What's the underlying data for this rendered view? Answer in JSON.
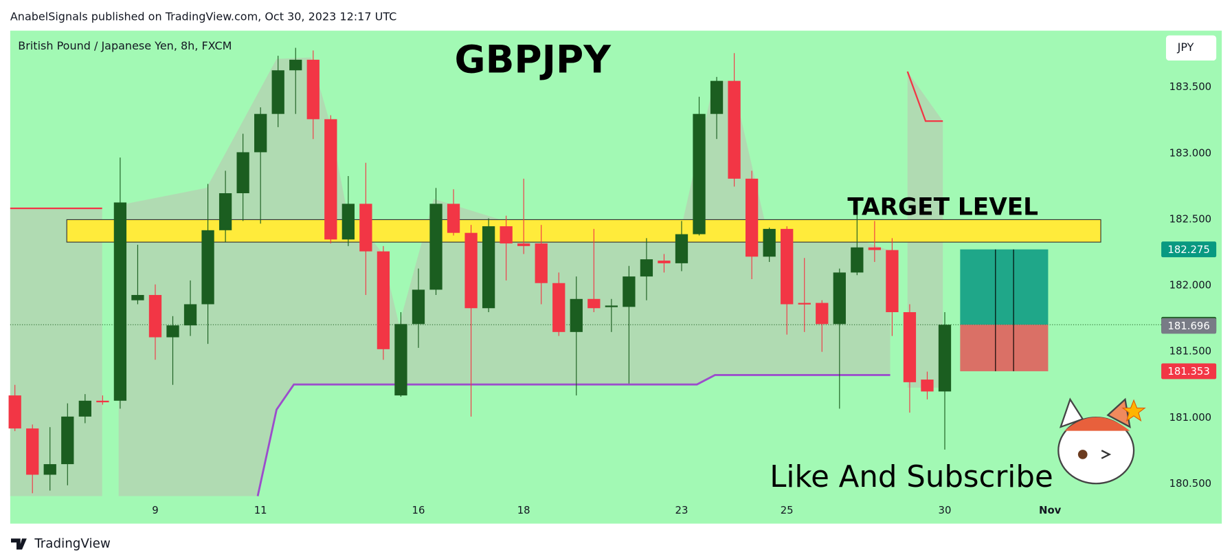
{
  "header": "AnabelSignals published on TradingView.com, Oct 30, 2023 12:17 UTC",
  "footer": "TradingView",
  "chart_data": {
    "type": "candlestick",
    "symbol_info": "British Pound / Japanese Yen, 8h, FXCM",
    "title": "GBPJPY",
    "currency": "JPY",
    "annotations": [
      "TARGET LEVEL",
      "Like And Subscribe"
    ],
    "categories": [
      null,
      null,
      null,
      null,
      null,
      null,
      null,
      null,
      "9",
      null,
      null,
      null,
      null,
      null,
      "11",
      null,
      null,
      null,
      null,
      null,
      null,
      null,
      null,
      "16",
      null,
      null,
      null,
      null,
      null,
      "18",
      null,
      null,
      null,
      null,
      null,
      null,
      null,
      null,
      "23",
      null,
      null,
      null,
      null,
      null,
      "25",
      null,
      null,
      null,
      null,
      null,
      null,
      null,
      null,
      "30",
      null,
      null,
      null,
      null,
      null,
      "Nov"
    ],
    "open": [
      181.17,
      180.92,
      180.57,
      180.65,
      181.01,
      181.13,
      181.13,
      181.89,
      181.93,
      181.61,
      181.7,
      181.86,
      182.42,
      182.7,
      183.01,
      183.3,
      183.63,
      183.71,
      183.26,
      182.35,
      182.62,
      182.26,
      181.17,
      181.71,
      181.97,
      182.62,
      182.4,
      181.83,
      182.45,
      182.32,
      182.32,
      182.02,
      181.65,
      181.9,
      181.84,
      181.84,
      182.07,
      182.19,
      182.17,
      182.39,
      183.3,
      183.55,
      182.81,
      182.22,
      182.43,
      181.87,
      181.87,
      181.71,
      182.1,
      182.29,
      182.27,
      181.8,
      181.29,
      181.2,
      null,
      null,
      null,
      null,
      null,
      null
    ],
    "high": [
      181.25,
      180.95,
      180.93,
      181.11,
      181.18,
      181.17,
      182.97,
      182.31,
      182.01,
      181.77,
      182.04,
      182.77,
      182.87,
      183.15,
      183.35,
      183.74,
      183.8,
      183.78,
      183.29,
      182.83,
      182.93,
      182.3,
      181.8,
      182.13,
      182.74,
      182.73,
      182.46,
      182.51,
      182.53,
      182.81,
      182.46,
      182.1,
      182.07,
      182.43,
      181.9,
      182.15,
      182.36,
      182.24,
      182.49,
      183.43,
      183.58,
      183.76,
      182.87,
      182.44,
      182.45,
      182.21,
      181.89,
      182.13,
      182.59,
      182.49,
      182.36,
      181.86,
      181.35,
      181.8,
      null,
      null,
      null,
      null,
      null,
      null
    ],
    "low": [
      180.9,
      180.43,
      180.45,
      180.49,
      180.96,
      181.1,
      181.07,
      181.86,
      181.44,
      181.25,
      181.62,
      181.56,
      182.33,
      182.49,
      182.47,
      183.2,
      183.3,
      183.11,
      182.32,
      182.3,
      181.93,
      181.44,
      181.16,
      181.53,
      181.93,
      182.38,
      181.01,
      181.8,
      182.04,
      182.24,
      181.86,
      181.62,
      181.17,
      181.8,
      181.65,
      181.26,
      181.89,
      182.1,
      182.11,
      182.38,
      183.11,
      182.75,
      182.05,
      182.18,
      181.63,
      181.65,
      181.5,
      181.07,
      182.08,
      182.18,
      181.62,
      181.04,
      181.14,
      180.76,
      null,
      null,
      null,
      null,
      null,
      null
    ],
    "close": [
      180.92,
      180.57,
      180.65,
      181.01,
      181.13,
      181.12,
      182.63,
      181.93,
      181.61,
      181.7,
      181.86,
      182.42,
      182.7,
      183.01,
      183.3,
      183.63,
      183.71,
      183.26,
      182.35,
      182.62,
      182.26,
      181.52,
      181.71,
      181.97,
      182.62,
      182.4,
      181.83,
      182.45,
      182.32,
      182.3,
      182.02,
      181.65,
      181.9,
      181.83,
      181.85,
      182.07,
      182.2,
      182.17,
      182.39,
      183.3,
      183.55,
      182.81,
      182.22,
      182.43,
      181.86,
      181.86,
      181.71,
      182.1,
      182.29,
      182.27,
      181.8,
      181.27,
      181.2,
      181.705,
      null,
      null,
      null,
      null,
      null,
      null
    ],
    "up_color": "#1b5e20",
    "down_color": "#f23645",
    "ylim": [
      180.2,
      183.93
    ],
    "yticks": [
      {
        "value": 180.5,
        "label": "180.500"
      },
      {
        "value": 181,
        "label": "181.000"
      },
      {
        "value": 181.5,
        "label": "181.500"
      },
      {
        "value": 182,
        "label": "182.000"
      },
      {
        "value": 182.5,
        "label": "182.500"
      },
      {
        "value": 183,
        "label": "183.000"
      },
      {
        "value": 183.5,
        "label": "183.500"
      }
    ],
    "target_zone": [
      182.33,
      182.5
    ],
    "position": {
      "target": 182.275,
      "entry": 181.705,
      "stop": 181.353
    },
    "bid": 181.696
  }
}
